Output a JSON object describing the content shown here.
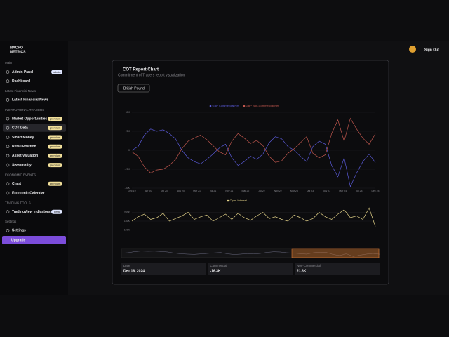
{
  "brand": {
    "line1": "MACRO",
    "line2": "METRICS"
  },
  "header": {
    "sign_out": "Sign Out"
  },
  "sidebar": {
    "sections": [
      {
        "title": "Main",
        "items": [
          {
            "label": "Admin Panel",
            "badge": "admin"
          },
          {
            "label": "Dashboard"
          }
        ]
      },
      {
        "title": "Latest Financial News",
        "items": [
          {
            "label": "Latest Financial News"
          }
        ]
      },
      {
        "title": "INSTITUTIONAL TRADERS",
        "items": [
          {
            "label": "Market Opportunities",
            "badge": "premium"
          },
          {
            "label": "COT Data",
            "badge": "premium",
            "active": true
          },
          {
            "label": "Smart Money",
            "badge": "premium"
          },
          {
            "label": "Retail Position",
            "badge": "premium"
          },
          {
            "label": "Asset Valuation",
            "badge": "premium"
          },
          {
            "label": "Seasonality",
            "badge": "premium"
          }
        ]
      },
      {
        "title": "ECONOMIC EVENTS",
        "items": [
          {
            "label": "Chart",
            "badge": "premium"
          },
          {
            "label": "Economic Calendar"
          }
        ]
      },
      {
        "title": "TRADING TOOLS",
        "items": [
          {
            "label": "TradingView Indicators",
            "badge": "beta"
          }
        ]
      },
      {
        "title": "Settings",
        "items": [
          {
            "label": "Settings"
          }
        ]
      }
    ],
    "upgrade": "Upgrade"
  },
  "card": {
    "title": "COT Report Chart",
    "subtitle": "Commitment of Traders report visualization",
    "selector": "British Pound",
    "info": [
      {
        "label": "Date",
        "value": "Dec 16, 2024"
      },
      {
        "label": "Commercial",
        "value": "-16.3K"
      },
      {
        "label": "Non-Commercial",
        "value": "21.6K"
      }
    ]
  },
  "chart_data": [
    {
      "type": "line",
      "series": [
        {
          "name": "GBP Commercial Net",
          "color": "#5a5ad8",
          "values": [
            0,
            5000,
            20000,
            28000,
            25000,
            27000,
            22000,
            15000,
            0,
            -10000,
            -15000,
            -18000,
            -12000,
            -5000,
            3000,
            8000,
            -10000,
            -20000,
            -15000,
            -8000,
            -12000,
            -5000,
            10000,
            18000,
            15000,
            5000,
            0,
            -8000,
            -15000,
            5000,
            12000,
            8000,
            -20000,
            -35000,
            -10000,
            -48000,
            -30000,
            -15000,
            -5000,
            -16300
          ]
        },
        {
          "name": "GBP Non-Commercial Net",
          "color": "#c0574e",
          "values": [
            -2000,
            -8000,
            -22000,
            -30000,
            -26000,
            -25000,
            -20000,
            -12000,
            2000,
            12000,
            16000,
            20000,
            14000,
            6000,
            -2000,
            -6000,
            12000,
            22000,
            16000,
            9000,
            13000,
            6000,
            -8000,
            -16000,
            -14000,
            -4000,
            2000,
            10000,
            18000,
            -4000,
            -10000,
            -6000,
            22000,
            40000,
            12000,
            42000,
            28000,
            16000,
            8000,
            21600
          ]
        }
      ],
      "xticks": [
        "Dec 19",
        "Apr 20",
        "Jul 20",
        "Nov 20",
        "Mar 21",
        "Jul 21",
        "Nov 21",
        "Mar 22",
        "Jul 22",
        "Nov 22",
        "Mar 23",
        "Jul 23",
        "Nov 23",
        "Mar 24",
        "Jul 24",
        "Dec 24"
      ],
      "ylim": [
        -50000,
        50000
      ],
      "yticks": [
        {
          "value": 50000,
          "label": "50K"
        },
        {
          "value": 25000,
          "label": "25K"
        },
        {
          "value": 0,
          "label": "0"
        },
        {
          "value": -25000,
          "label": "-25K"
        },
        {
          "value": -50000,
          "label": "-50K"
        }
      ]
    },
    {
      "type": "line",
      "series": [
        {
          "name": "Open Interest",
          "color": "#e6d58a",
          "values": [
            150000,
            175000,
            190000,
            160000,
            170000,
            195000,
            150000,
            165000,
            180000,
            200000,
            160000,
            175000,
            185000,
            150000,
            170000,
            190000,
            160000,
            195000,
            170000,
            155000,
            180000,
            200000,
            165000,
            175000,
            160000,
            150000,
            185000,
            170000,
            150000,
            165000,
            200000,
            175000,
            160000,
            190000,
            215000,
            170000,
            180000,
            160000,
            225000,
            120000
          ]
        }
      ],
      "ylim": [
        90000,
        230000
      ],
      "yticks": [
        {
          "value": 200000,
          "label": "200K"
        },
        {
          "value": 150000,
          "label": "150K"
        },
        {
          "value": 100000,
          "label": "100K"
        }
      ]
    }
  ]
}
